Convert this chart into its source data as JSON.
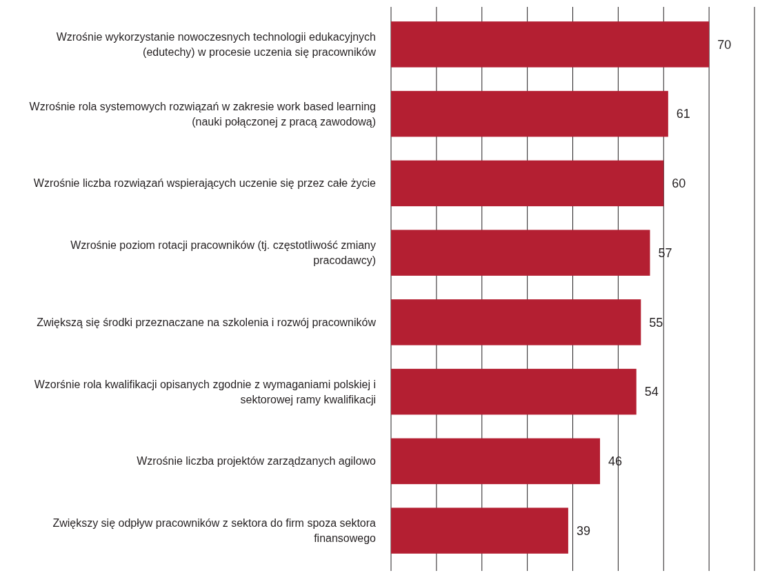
{
  "chart_data": {
    "type": "bar",
    "orientation": "horizontal",
    "categories": [
      "Wzrośnie wykorzystanie nowoczesnych technologii edukacyjnych (edutechy) w procesie uczenia się pracowników",
      "Wzrośnie rola systemowych rozwiązań w zakresie work based learning (nauki połączonej z pracą zawodową)",
      "Wzrośnie liczba rozwiązań wspierających uczenie się przez całe życie",
      "Wzrośnie poziom rotacji pracowników (tj. częstotliwość zmiany pracodawcy)",
      "Zwiększą się środki przeznaczane na szkolenia i rozwój pracowników",
      "Wzorśnie rola kwalifikacji opisanych zgodnie z wymaganiami polskiej i sektorowej ramy kwalifikacji",
      "Wzrośnie liczba projektów zarządzanych agilowo",
      "Zwiększy się odpływ pracowników z sektora do firm spoza sektora finansowego"
    ],
    "values": [
      70,
      61,
      60,
      57,
      55,
      54,
      46,
      39
    ],
    "color": "#b41f32",
    "xlim": [
      0,
      80
    ],
    "xticks": [
      {
        "value": 0,
        "label": null
      },
      {
        "value": 10,
        "label": null
      },
      {
        "value": 20,
        "label": null
      },
      {
        "value": 30,
        "label": null
      },
      {
        "value": 40,
        "label": null
      },
      {
        "value": 50,
        "label": null
      },
      {
        "value": 60,
        "label": null
      },
      {
        "value": 70,
        "label": null
      },
      {
        "value": 80,
        "label": null
      }
    ],
    "grid": "x",
    "data_labels": true
  }
}
